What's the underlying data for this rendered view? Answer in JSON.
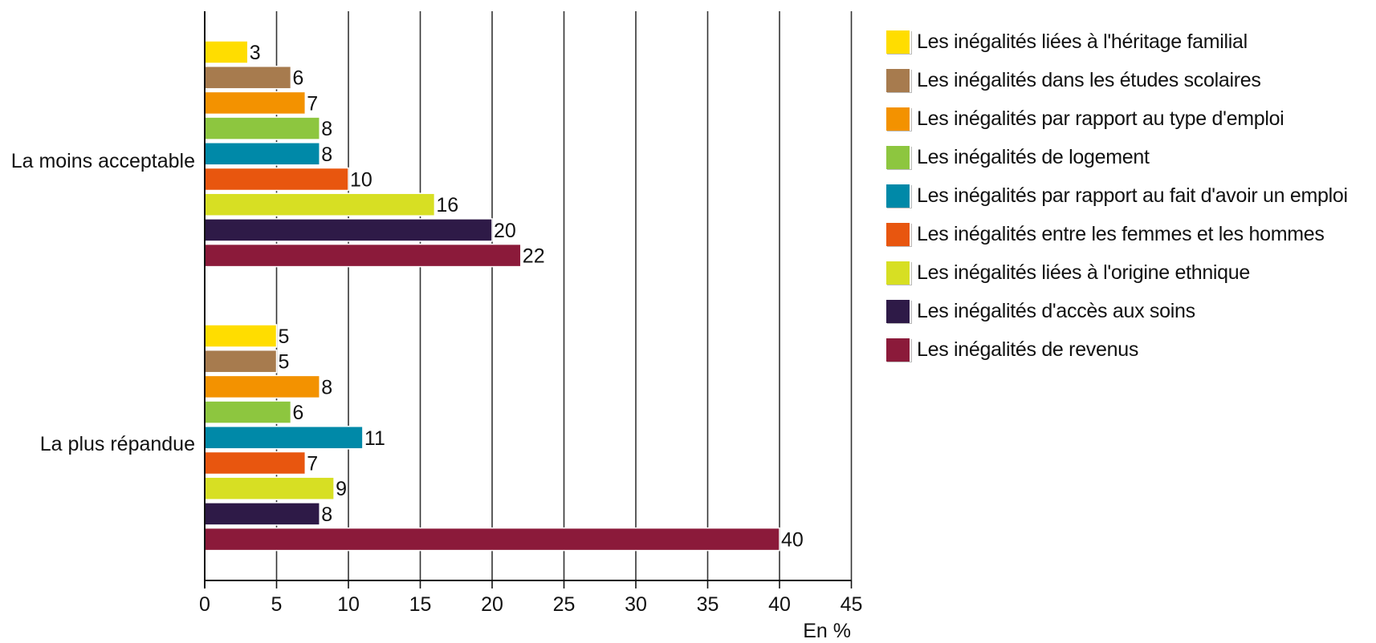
{
  "chart_data": {
    "type": "bar",
    "orientation": "horizontal",
    "categories": [
      "La moins acceptable",
      "La plus répandue"
    ],
    "series": [
      {
        "name": "Les inégalités liées à l'héritage familial",
        "color": "#FFDD00",
        "values": [
          3,
          5
        ]
      },
      {
        "name": "Les inégalités dans les études scolaires",
        "color": "#A77B4E",
        "values": [
          6,
          5
        ]
      },
      {
        "name": "Les inégalités par rapport au type d'emploi",
        "color": "#F39200",
        "values": [
          7,
          8
        ]
      },
      {
        "name": "Les inégalités de logement",
        "color": "#8DC63F",
        "values": [
          8,
          6
        ]
      },
      {
        "name": "Les inégalités par rapport au fait d'avoir un emploi",
        "color": "#0089A8",
        "values": [
          8,
          11
        ]
      },
      {
        "name": "Les inégalités entre les femmes et les hommes",
        "color": "#E8560F",
        "values": [
          10,
          7
        ]
      },
      {
        "name": "Les inégalités liées à l'origine ethnique",
        "color": "#D7DF23",
        "values": [
          16,
          9
        ]
      },
      {
        "name": "Les inégalités d'accès aux soins",
        "color": "#2E1A47",
        "values": [
          20,
          8
        ]
      },
      {
        "name": "Les inégalités de revenus",
        "color": "#8B1A3A",
        "values": [
          22,
          40
        ]
      }
    ],
    "data_labels": [
      [
        "3",
        "6",
        "7",
        "8",
        "8",
        "10",
        "16",
        "20",
        "22"
      ],
      [
        "5",
        "5",
        "8",
        "6",
        "11",
        "7",
        "9",
        "8",
        "40"
      ]
    ],
    "xlim": [
      0,
      45
    ],
    "xticks": [
      "0",
      "5",
      "10",
      "15",
      "20",
      "25",
      "30",
      "35",
      "40",
      "45"
    ],
    "xlabel": "En %",
    "ylabel": "",
    "title": "",
    "grid": "vertical",
    "legend_position": "right"
  }
}
